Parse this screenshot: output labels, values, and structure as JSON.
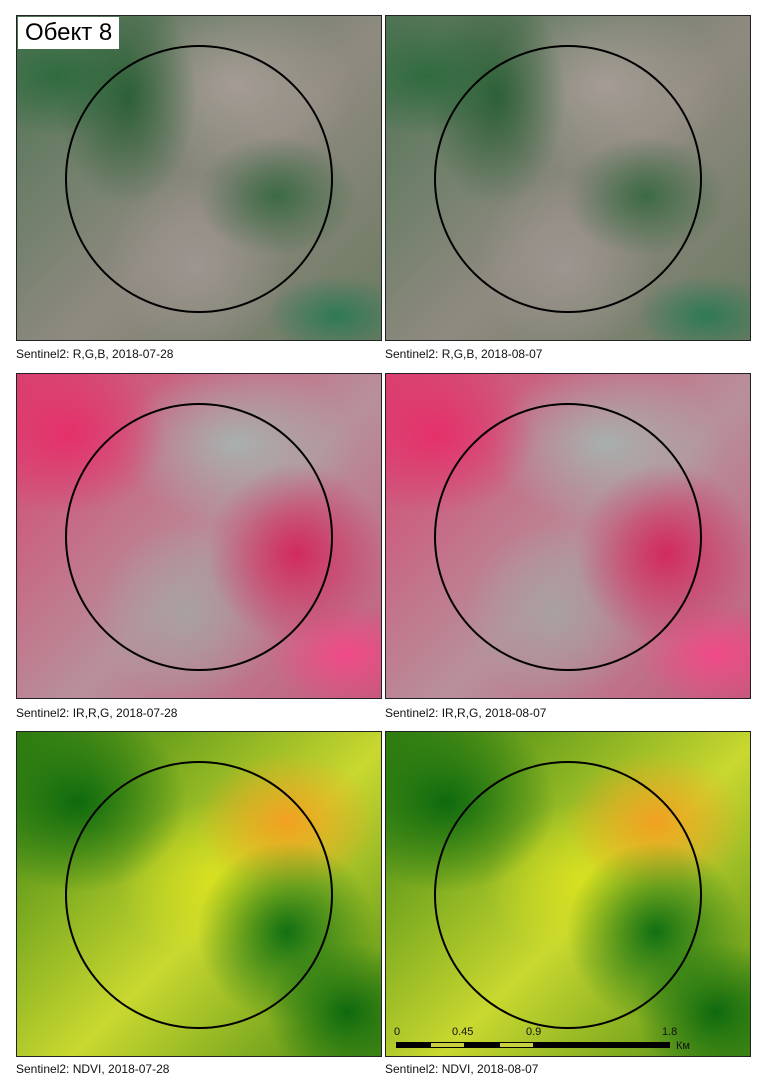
{
  "title": "Обект 8",
  "panels": [
    {
      "caption": "Sentinel2: R,G,B, 2018-07-28",
      "type": "rgb"
    },
    {
      "caption": "Sentinel2: R,G,B, 2018-08-07",
      "type": "rgb"
    },
    {
      "caption": "Sentinel2: IR,R,G, 2018-07-28",
      "type": "ir"
    },
    {
      "caption": "Sentinel2: IR,R,G, 2018-08-07",
      "type": "ir"
    },
    {
      "caption": "Sentinel2: NDVI, 2018-07-28",
      "type": "ndvi"
    },
    {
      "caption": "Sentinel2: NDVI, 2018-08-07",
      "type": "ndvi"
    }
  ],
  "scale_bar": {
    "labels": [
      "0",
      "0.45",
      "0.9",
      "1.8"
    ],
    "unit": "Км"
  }
}
